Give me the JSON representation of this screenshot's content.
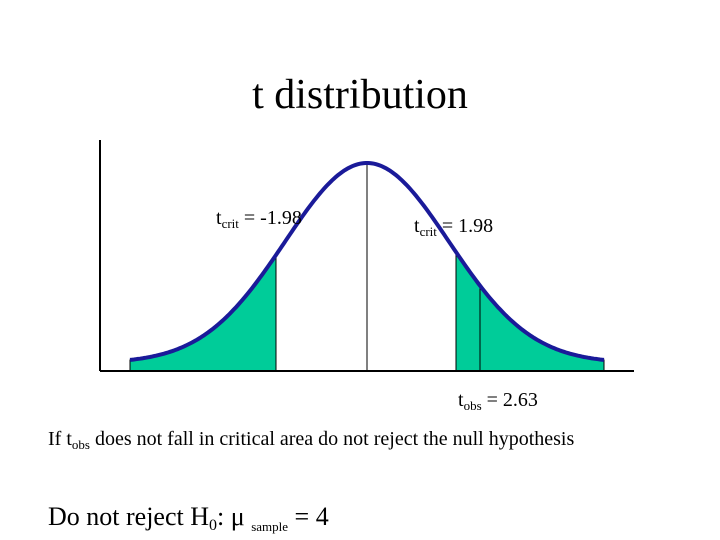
{
  "slide": {
    "title": "t distribution"
  },
  "labels": {
    "tcrit_left": {
      "t": "t",
      "sub": "crit",
      "rest": " = -1.98"
    },
    "tcrit_right": {
      "t": "t",
      "sub": "crit",
      "rest": " = 1.98"
    },
    "tobs": {
      "t": "t",
      "sub": "obs",
      "rest": " = 2.63"
    }
  },
  "note": {
    "part1": "If t",
    "sub": "obs",
    "part2": " does not fall in critical area do not reject the null hypothesis"
  },
  "conclusion": {
    "part1": "Do not reject H",
    "h_sub": "0",
    "part2": ": ",
    "mu": "μ",
    "mu_sub": "sample",
    "part3": " = 4"
  },
  "colors": {
    "curve": "#1a1a99",
    "shade": "#00cc99",
    "axis": "#000000"
  }
}
